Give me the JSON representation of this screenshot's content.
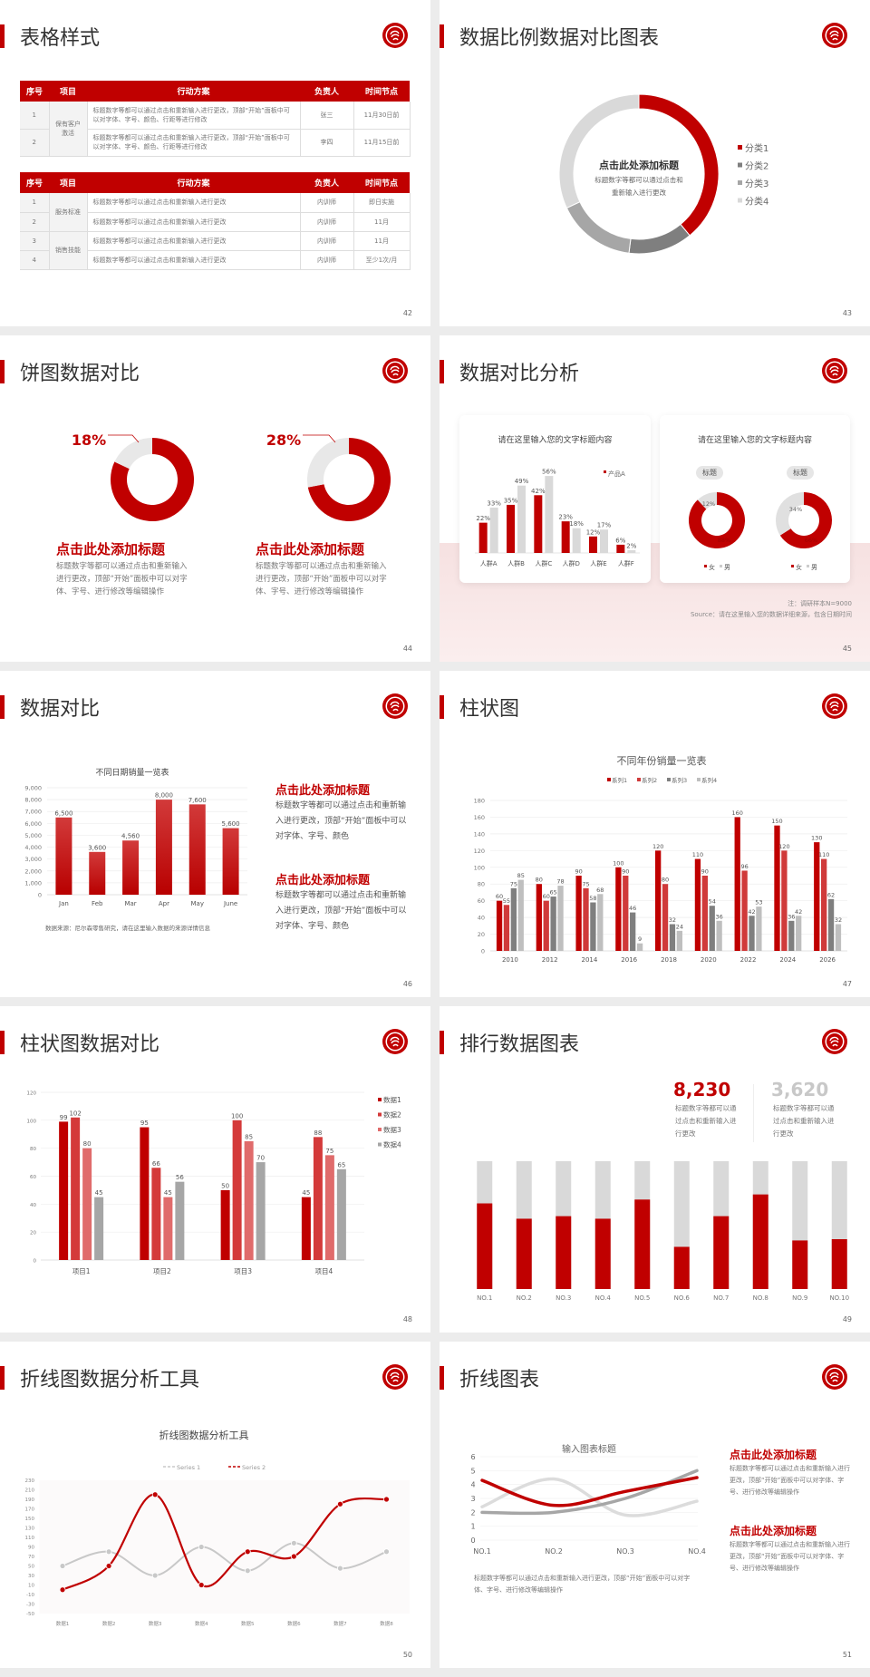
{
  "colors": {
    "accent": "#c00000",
    "gray_dark": "#7f7f7f",
    "gray_mid": "#a6a6a6",
    "gray_light": "#d9d9d9"
  },
  "s42": {
    "title": "表格样式",
    "page": "42",
    "headers": [
      "序号",
      "项目",
      "行动方案",
      "负责人",
      "时间节点"
    ],
    "table1": {
      "groups": [
        {
          "item": "保有客户激活",
          "rows": [
            {
              "no": "1",
              "plan": "标题数字等都可以通过点击和重新输入进行更改，顶部“开始”面板中可以对字体、字号、颜色、行距等进行修改",
              "owner": "张三",
              "deadline": "11月30日前"
            },
            {
              "no": "2",
              "plan": "标题数字等都可以通过点击和重新输入进行更改，顶部“开始”面板中可以对字体、字号、颜色、行距等进行修改",
              "owner": "李四",
              "deadline": "11月15日前"
            }
          ]
        }
      ]
    },
    "table2": {
      "groups": [
        {
          "item": "服务标准",
          "rows": [
            {
              "no": "1",
              "plan": "标题数字等都可以通过点击和重新输入进行更改",
              "owner": "内训师",
              "deadline": "即日实施"
            },
            {
              "no": "2",
              "plan": "标题数字等都可以通过点击和重新输入进行更改",
              "owner": "内训师",
              "deadline": "11月"
            }
          ]
        },
        {
          "item": "销售技能",
          "rows": [
            {
              "no": "3",
              "plan": "标题数字等都可以通过点击和重新输入进行更改",
              "owner": "内训师",
              "deadline": "11月"
            },
            {
              "no": "4",
              "plan": "标题数字等都可以通过点击和重新输入进行更改",
              "owner": "内训师",
              "deadline": "至少1次/月"
            }
          ]
        }
      ]
    }
  },
  "s43": {
    "title": "数据比例数据对比图表",
    "page": "43",
    "center_title": "点击此处添加标题",
    "center_body": "标题数字等都可以通过点击和重新输入进行更改"
  },
  "s44": {
    "title": "饼图数据对比",
    "page": "44",
    "items": [
      {
        "heading": "点击此处添加标题",
        "body": "标题数字等都可以通过点击和重新输入进行更改，顶部“开始”面板中可以对字体、字号、进行修改等编辑操作"
      },
      {
        "heading": "点击此处添加标题",
        "body": "标题数字等都可以通过点击和重新输入进行更改，顶部“开始”面板中可以对字体、字号、进行修改等编辑操作"
      }
    ]
  },
  "s45": {
    "title": "数据对比分析",
    "page": "45",
    "card1_title": "请在这里输入您的文字标题内容",
    "card2_title": "请在这里输入您的文字标题内容",
    "pill1": "标题",
    "pill2": "标题",
    "note": "注：调研样本N=9000",
    "source": "Source：请在这里输入您的数据详细来源，包含日期时间"
  },
  "s46": {
    "title": "数据对比",
    "page": "46",
    "source": "数据来源：尼尔森零售研究，请在这里输入数据的来源详情信息",
    "items": [
      {
        "heading": "点击此处添加标题",
        "body": "标题数字等都可以通过点击和重新输入进行更改，顶部“开始”面板中可以对字体、字号、颜色"
      },
      {
        "heading": "点击此处添加标题",
        "body": "标题数字等都可以通过点击和重新输入进行更改，顶部“开始”面板中可以对字体、字号、颜色"
      }
    ]
  },
  "s47": {
    "title": "柱状图",
    "page": "47"
  },
  "s48": {
    "title": "柱状图数据对比",
    "page": "48"
  },
  "s49": {
    "title": "排行数据图表",
    "page": "49",
    "stats": [
      {
        "value": "8,230",
        "body": "标题数字等都可以通过点击和重新输入进行更改"
      },
      {
        "value": "3,620",
        "body": "标题数字等都可以通过点击和重新输入进行更改"
      }
    ]
  },
  "s50": {
    "title": "折线图数据分析工具",
    "page": "50"
  },
  "s51": {
    "title": "折线图表",
    "page": "51",
    "bottom_text": "标题数字等都可以通过点击和重新输入进行更改，顶部“开始”面板中可以对字体、字号、进行修改等编辑操作",
    "items": [
      {
        "heading": "点击此处添加标题",
        "body": "标题数字等都可以通过点击和重新输入进行更改，顶部“开始”面板中可以对字体、字号、进行修改等编辑操作"
      },
      {
        "heading": "点击此处添加标题",
        "body": "标题数字等都可以通过点击和重新输入进行更改，顶部“开始”面板中可以对字体、字号、进行修改等编辑操作"
      }
    ]
  },
  "chart_data": [
    {
      "type": "pie",
      "style": "donut",
      "categories": [
        "分类1",
        "分类2",
        "分类3",
        "分类4"
      ],
      "values": [
        39,
        13,
        16,
        32
      ],
      "colors": [
        "#c00000",
        "#7f7f7f",
        "#a6a6a6",
        "#d9d9d9"
      ],
      "legend": "right"
    },
    {
      "type": "pie",
      "style": "donut",
      "values": [
        82,
        18
      ],
      "label": "18%",
      "colors": [
        "#c00000",
        "#e8e8e8"
      ]
    },
    {
      "type": "pie",
      "style": "donut",
      "values": [
        72,
        28
      ],
      "label": "28%",
      "colors": [
        "#c00000",
        "#e8e8e8"
      ]
    },
    {
      "type": "bar",
      "categories": [
        "人群A",
        "人群B",
        "人群C",
        "人群D",
        "人群E",
        "人群F"
      ],
      "series": [
        {
          "name": "产品A",
          "values": [
            22,
            35,
            42,
            23,
            12,
            6
          ],
          "color": "#c00000"
        },
        {
          "values": [
            33,
            49,
            56,
            18,
            17,
            2
          ],
          "color": "#d9d9d9"
        }
      ],
      "value_suffix": "%",
      "legend": "top-right"
    },
    {
      "type": "pie",
      "style": "donut",
      "categories": [
        "女",
        "男"
      ],
      "values": [
        88,
        12
      ],
      "labels": [
        "88%",
        "12%"
      ],
      "colors": [
        "#c00000",
        "#e0e0e0"
      ]
    },
    {
      "type": "pie",
      "style": "donut",
      "categories": [
        "女",
        "男"
      ],
      "values": [
        66,
        34
      ],
      "labels": [
        "66%",
        "34%"
      ],
      "colors": [
        "#c00000",
        "#e0e0e0"
      ]
    },
    {
      "type": "bar",
      "title": "不同日期销量一览表",
      "categories": [
        "Jan",
        "Feb",
        "Mar",
        "Apr",
        "May",
        "June"
      ],
      "values": [
        6500,
        3600,
        4560,
        8000,
        7600,
        5600
      ],
      "ylim": [
        0,
        9000
      ],
      "yticks": [
        0,
        1000,
        2000,
        3000,
        4000,
        5000,
        6000,
        7000,
        8000,
        9000
      ],
      "grid": true,
      "color": "#c00000"
    },
    {
      "type": "bar",
      "title": "不同年份销量一览表",
      "categories": [
        "2010",
        "2012",
        "2014",
        "2016",
        "2018",
        "2020",
        "2022",
        "2024",
        "2026"
      ],
      "series": [
        {
          "name": "系列1",
          "values": [
            60,
            80,
            90,
            100,
            120,
            110,
            160,
            150,
            130
          ],
          "color": "#c00000"
        },
        {
          "name": "系列2",
          "values": [
            55,
            60,
            75,
            90,
            80,
            90,
            96,
            120,
            110
          ],
          "color": "#d03a3a"
        },
        {
          "name": "系列3",
          "values": [
            75,
            65,
            58,
            46,
            32,
            54,
            42,
            36,
            62
          ],
          "color": "#7f7f7f"
        },
        {
          "name": "系列4",
          "values": [
            85,
            78,
            68,
            9,
            24,
            36,
            53,
            42,
            32
          ],
          "color": "#bfbfbf"
        }
      ],
      "ylim": [
        0,
        180
      ],
      "yticks": [
        0,
        20,
        40,
        60,
        80,
        100,
        120,
        140,
        160,
        180
      ],
      "grid": true,
      "legend": "top"
    },
    {
      "type": "bar",
      "categories": [
        "项目1",
        "项目2",
        "项目3",
        "项目4"
      ],
      "series": [
        {
          "name": "数据1",
          "values": [
            99,
            95,
            50,
            45
          ],
          "color": "#c00000"
        },
        {
          "name": "数据2",
          "values": [
            102,
            66,
            100,
            88
          ],
          "color": "#d43a3a"
        },
        {
          "name": "数据3",
          "values": [
            80,
            45,
            85,
            75
          ],
          "color": "#e06b6b"
        },
        {
          "name": "数据4",
          "values": [
            45,
            56,
            70,
            65
          ],
          "color": "#a6a6a6"
        }
      ],
      "ylim": [
        0,
        120
      ],
      "yticks": [
        0,
        20,
        40,
        60,
        80,
        100,
        120
      ],
      "grid": true,
      "legend": "right"
    },
    {
      "type": "bar",
      "style": "stacked-percent",
      "categories": [
        "NO.1",
        "NO.2",
        "NO.3",
        "NO.4",
        "NO.5",
        "NO.6",
        "NO.7",
        "NO.8",
        "NO.9",
        "NO.10"
      ],
      "values": [
        0.67,
        0.55,
        0.57,
        0.55,
        0.7,
        0.33,
        0.57,
        0.74,
        0.38,
        0.39
      ],
      "colors": [
        "#c00000",
        "#d9d9d9"
      ]
    },
    {
      "type": "line",
      "title": "折线图数据分析工具",
      "categories": [
        "数据1",
        "数据2",
        "数据3",
        "数据4",
        "数据5",
        "数据6",
        "数据7",
        "数据8"
      ],
      "series": [
        {
          "name": "Series 1",
          "values": [
            50,
            80,
            30,
            90,
            40,
            98,
            45,
            80
          ],
          "color": "#c8c8c8"
        },
        {
          "name": "Series 2",
          "values": [
            0,
            50,
            200,
            10,
            80,
            70,
            180,
            190
          ],
          "color": "#c00000"
        }
      ],
      "ylim": [
        -50,
        230
      ],
      "yticks": [
        -50,
        -30,
        -10,
        10,
        30,
        50,
        70,
        90,
        110,
        130,
        150,
        170,
        190,
        210,
        230
      ],
      "legend": "top",
      "smooth": true
    },
    {
      "type": "line",
      "title": "输入图表标题",
      "categories": [
        "NO.1",
        "NO.2",
        "NO.3",
        "NO.4"
      ],
      "series": [
        {
          "values": [
            4.3,
            2.5,
            3.5,
            4.5
          ],
          "color": "#c00000"
        },
        {
          "values": [
            2.4,
            4.4,
            1.8,
            2.8
          ],
          "color": "#dcdcdc"
        },
        {
          "values": [
            2.0,
            2.0,
            3.0,
            5.0
          ],
          "color": "#a6a6a6"
        }
      ],
      "ylim": [
        0,
        6
      ],
      "yticks": [
        0,
        1,
        2,
        3,
        4,
        5,
        6
      ],
      "grid": true,
      "smooth": true
    }
  ]
}
